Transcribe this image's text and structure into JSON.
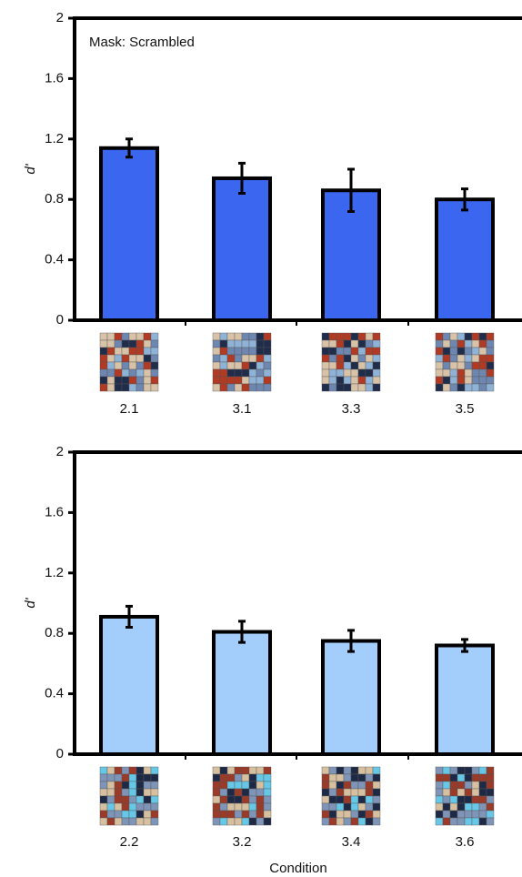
{
  "chart_data": [
    {
      "type": "bar",
      "annotation": "Mask: Scrambled",
      "ylabel": "d'",
      "categories": [
        "2.1",
        "3.1",
        "3.3",
        "3.5"
      ],
      "values": [
        1.14,
        0.94,
        0.86,
        0.8
      ],
      "errors": [
        0.06,
        0.1,
        0.14,
        0.07
      ],
      "color": "#3a66f0",
      "ylim": [
        0,
        2
      ],
      "yticks": [
        0,
        0.4,
        0.8,
        1.2,
        1.6,
        2
      ]
    },
    {
      "type": "bar",
      "ylabel": "d'",
      "xlabel": "Condition",
      "categories": [
        "2.2",
        "3.2",
        "3.4",
        "3.6"
      ],
      "values": [
        0.91,
        0.81,
        0.75,
        0.72
      ],
      "errors": [
        0.07,
        0.07,
        0.07,
        0.04
      ],
      "color": "#a3cdfb",
      "ylim": [
        0,
        2
      ],
      "yticks": [
        0,
        0.4,
        0.8,
        1.2,
        1.6,
        2
      ]
    }
  ]
}
